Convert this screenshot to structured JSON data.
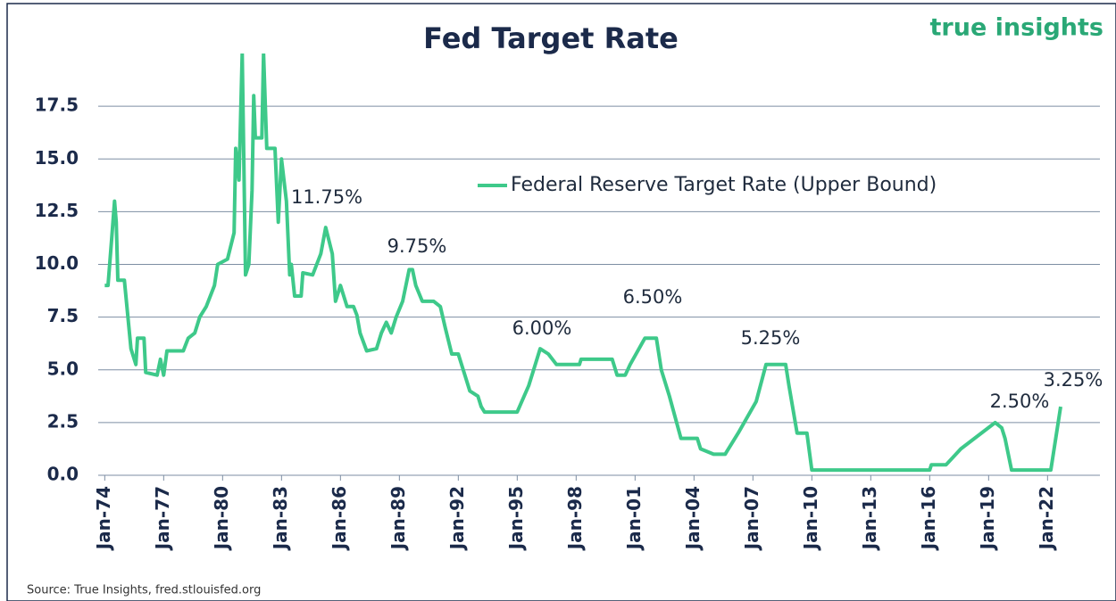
{
  "chart_data": {
    "type": "line",
    "title": "Fed Target Rate",
    "brand": "true insights",
    "source": "Source: True Insights, fred.stlouisfed.org",
    "annotations": [
      "11.75%",
      "9.75%",
      "6.00%",
      "6.50%",
      "5.25%",
      "2.50%",
      "3.25%"
    ],
    "x": [
      "1974-01",
      "1974-03",
      "1974-05",
      "1974-07",
      "1974-08",
      "1974-09",
      "1975-01",
      "1975-05",
      "1975-08",
      "1975-09",
      "1976-01",
      "1976-02",
      "1976-09",
      "1976-11",
      "1977-01",
      "1977-03",
      "1978-01",
      "1978-04",
      "1978-08",
      "1978-11",
      "1979-03",
      "1979-08",
      "1979-10",
      "1980-04",
      "1980-08",
      "1980-09",
      "1980-11",
      "1981-01",
      "1981-03",
      "1981-05",
      "1981-07",
      "1981-08",
      "1981-09",
      "1982-01",
      "1982-02",
      "1982-04",
      "1982-09",
      "1982-11",
      "1983-01",
      "1983-04",
      "1983-06",
      "1983-07",
      "1983-09",
      "1984-01",
      "1984-02",
      "1984-08",
      "1985-01",
      "1985-04",
      "1985-08",
      "1985-10",
      "1986-01",
      "1986-05",
      "1986-09",
      "1986-11",
      "1987-01",
      "1987-05",
      "1987-11",
      "1988-02",
      "1988-05",
      "1988-08",
      "1988-11",
      "1989-03",
      "1989-07",
      "1989-09",
      "1989-11",
      "1990-03",
      "1990-10",
      "1991-02",
      "1991-05",
      "1991-09",
      "1992-01",
      "1992-05",
      "1992-08",
      "1993-01",
      "1993-03",
      "1993-05",
      "1995-01",
      "1995-08",
      "1995-11",
      "1996-03",
      "1996-08",
      "1997-01",
      "1998-03",
      "1998-04",
      "1999-11",
      "2000-02",
      "2000-07",
      "2000-10",
      "2001-07",
      "2002-02",
      "2002-05",
      "2002-10",
      "2003-05",
      "2004-03",
      "2004-05",
      "2005-01",
      "2005-08",
      "2006-04",
      "2007-03",
      "2007-09",
      "2008-09",
      "2008-11",
      "2009-04",
      "2009-10",
      "2010-01",
      "2016-01",
      "2016-02",
      "2016-11",
      "2017-08",
      "2019-05",
      "2019-09",
      "2019-11",
      "2020-03",
      "2022-03",
      "2022-09"
    ],
    "series": [
      {
        "name": "Federal Reserve Target Rate (Upper Bound)",
        "color": "#3ec98a",
        "values": [
          9,
          9,
          11,
          13,
          12,
          9.25,
          9.25,
          6,
          5.25,
          6.5,
          6.5,
          4.875,
          4.75,
          5.5,
          4.75,
          5.9,
          5.9,
          6.5,
          6.75,
          7.5,
          8,
          9,
          10,
          10.25,
          11.5,
          15.5,
          14,
          20,
          9.5,
          10,
          13.5,
          18,
          16,
          16,
          20,
          15.5,
          15.5,
          12,
          15,
          13,
          9.5,
          10,
          8.5,
          8.5,
          9.6,
          9.5,
          10.5,
          11.75,
          10.5,
          8.25,
          9,
          8,
          8,
          7.6,
          6.75,
          5.9,
          6,
          6.75,
          7.25,
          6.75,
          7.5,
          8.25,
          9.75,
          9.75,
          9,
          8.25,
          8.25,
          8,
          7,
          5.75,
          5.75,
          4.75,
          4,
          3.75,
          3.25,
          3,
          3,
          4.25,
          5,
          6,
          5.75,
          5.25,
          5.25,
          5.5,
          5.5,
          4.75,
          4.75,
          5.25,
          6.5,
          6.5,
          5,
          3.75,
          1.75,
          1.75,
          1.25,
          1,
          1,
          2,
          3.5,
          5.25,
          5.25,
          4.25,
          2,
          2,
          0.25,
          0.25,
          0.5,
          0.5,
          1.25,
          2.5,
          2.25,
          1.75,
          0.25,
          0.25,
          3.25
        ]
      }
    ],
    "xlim": [
      "1973-09",
      "2024-09"
    ],
    "xticks": [
      {
        "value": "1974-01",
        "label": "Jan-74"
      },
      {
        "value": "1977-01",
        "label": "Jan-77"
      },
      {
        "value": "1980-01",
        "label": "Jan-80"
      },
      {
        "value": "1983-01",
        "label": "Jan-83"
      },
      {
        "value": "1986-01",
        "label": "Jan-86"
      },
      {
        "value": "1989-01",
        "label": "Jan-89"
      },
      {
        "value": "1992-01",
        "label": "Jan-92"
      },
      {
        "value": "1995-01",
        "label": "Jan-95"
      },
      {
        "value": "1998-01",
        "label": "Jan-98"
      },
      {
        "value": "2001-01",
        "label": "Jan-01"
      },
      {
        "value": "2004-01",
        "label": "Jan-04"
      },
      {
        "value": "2007-01",
        "label": "Jan-07"
      },
      {
        "value": "2010-01",
        "label": "Jan-10"
      },
      {
        "value": "2013-01",
        "label": "Jan-13"
      },
      {
        "value": "2016-01",
        "label": "Jan-16"
      },
      {
        "value": "2019-01",
        "label": "Jan-19"
      },
      {
        "value": "2022-01",
        "label": "Jan-22"
      }
    ],
    "ylim": [
      0,
      20
    ],
    "yticks": [
      {
        "value": 0,
        "label": "0.0"
      },
      {
        "value": 2.5,
        "label": "2.5"
      },
      {
        "value": 5,
        "label": "5.0"
      },
      {
        "value": 7.5,
        "label": "7.5"
      },
      {
        "value": 10,
        "label": "10.0"
      },
      {
        "value": 12.5,
        "label": "12.5"
      },
      {
        "value": 15,
        "label": "15.0"
      },
      {
        "value": 17.5,
        "label": "17.5"
      }
    ],
    "grid": true
  }
}
